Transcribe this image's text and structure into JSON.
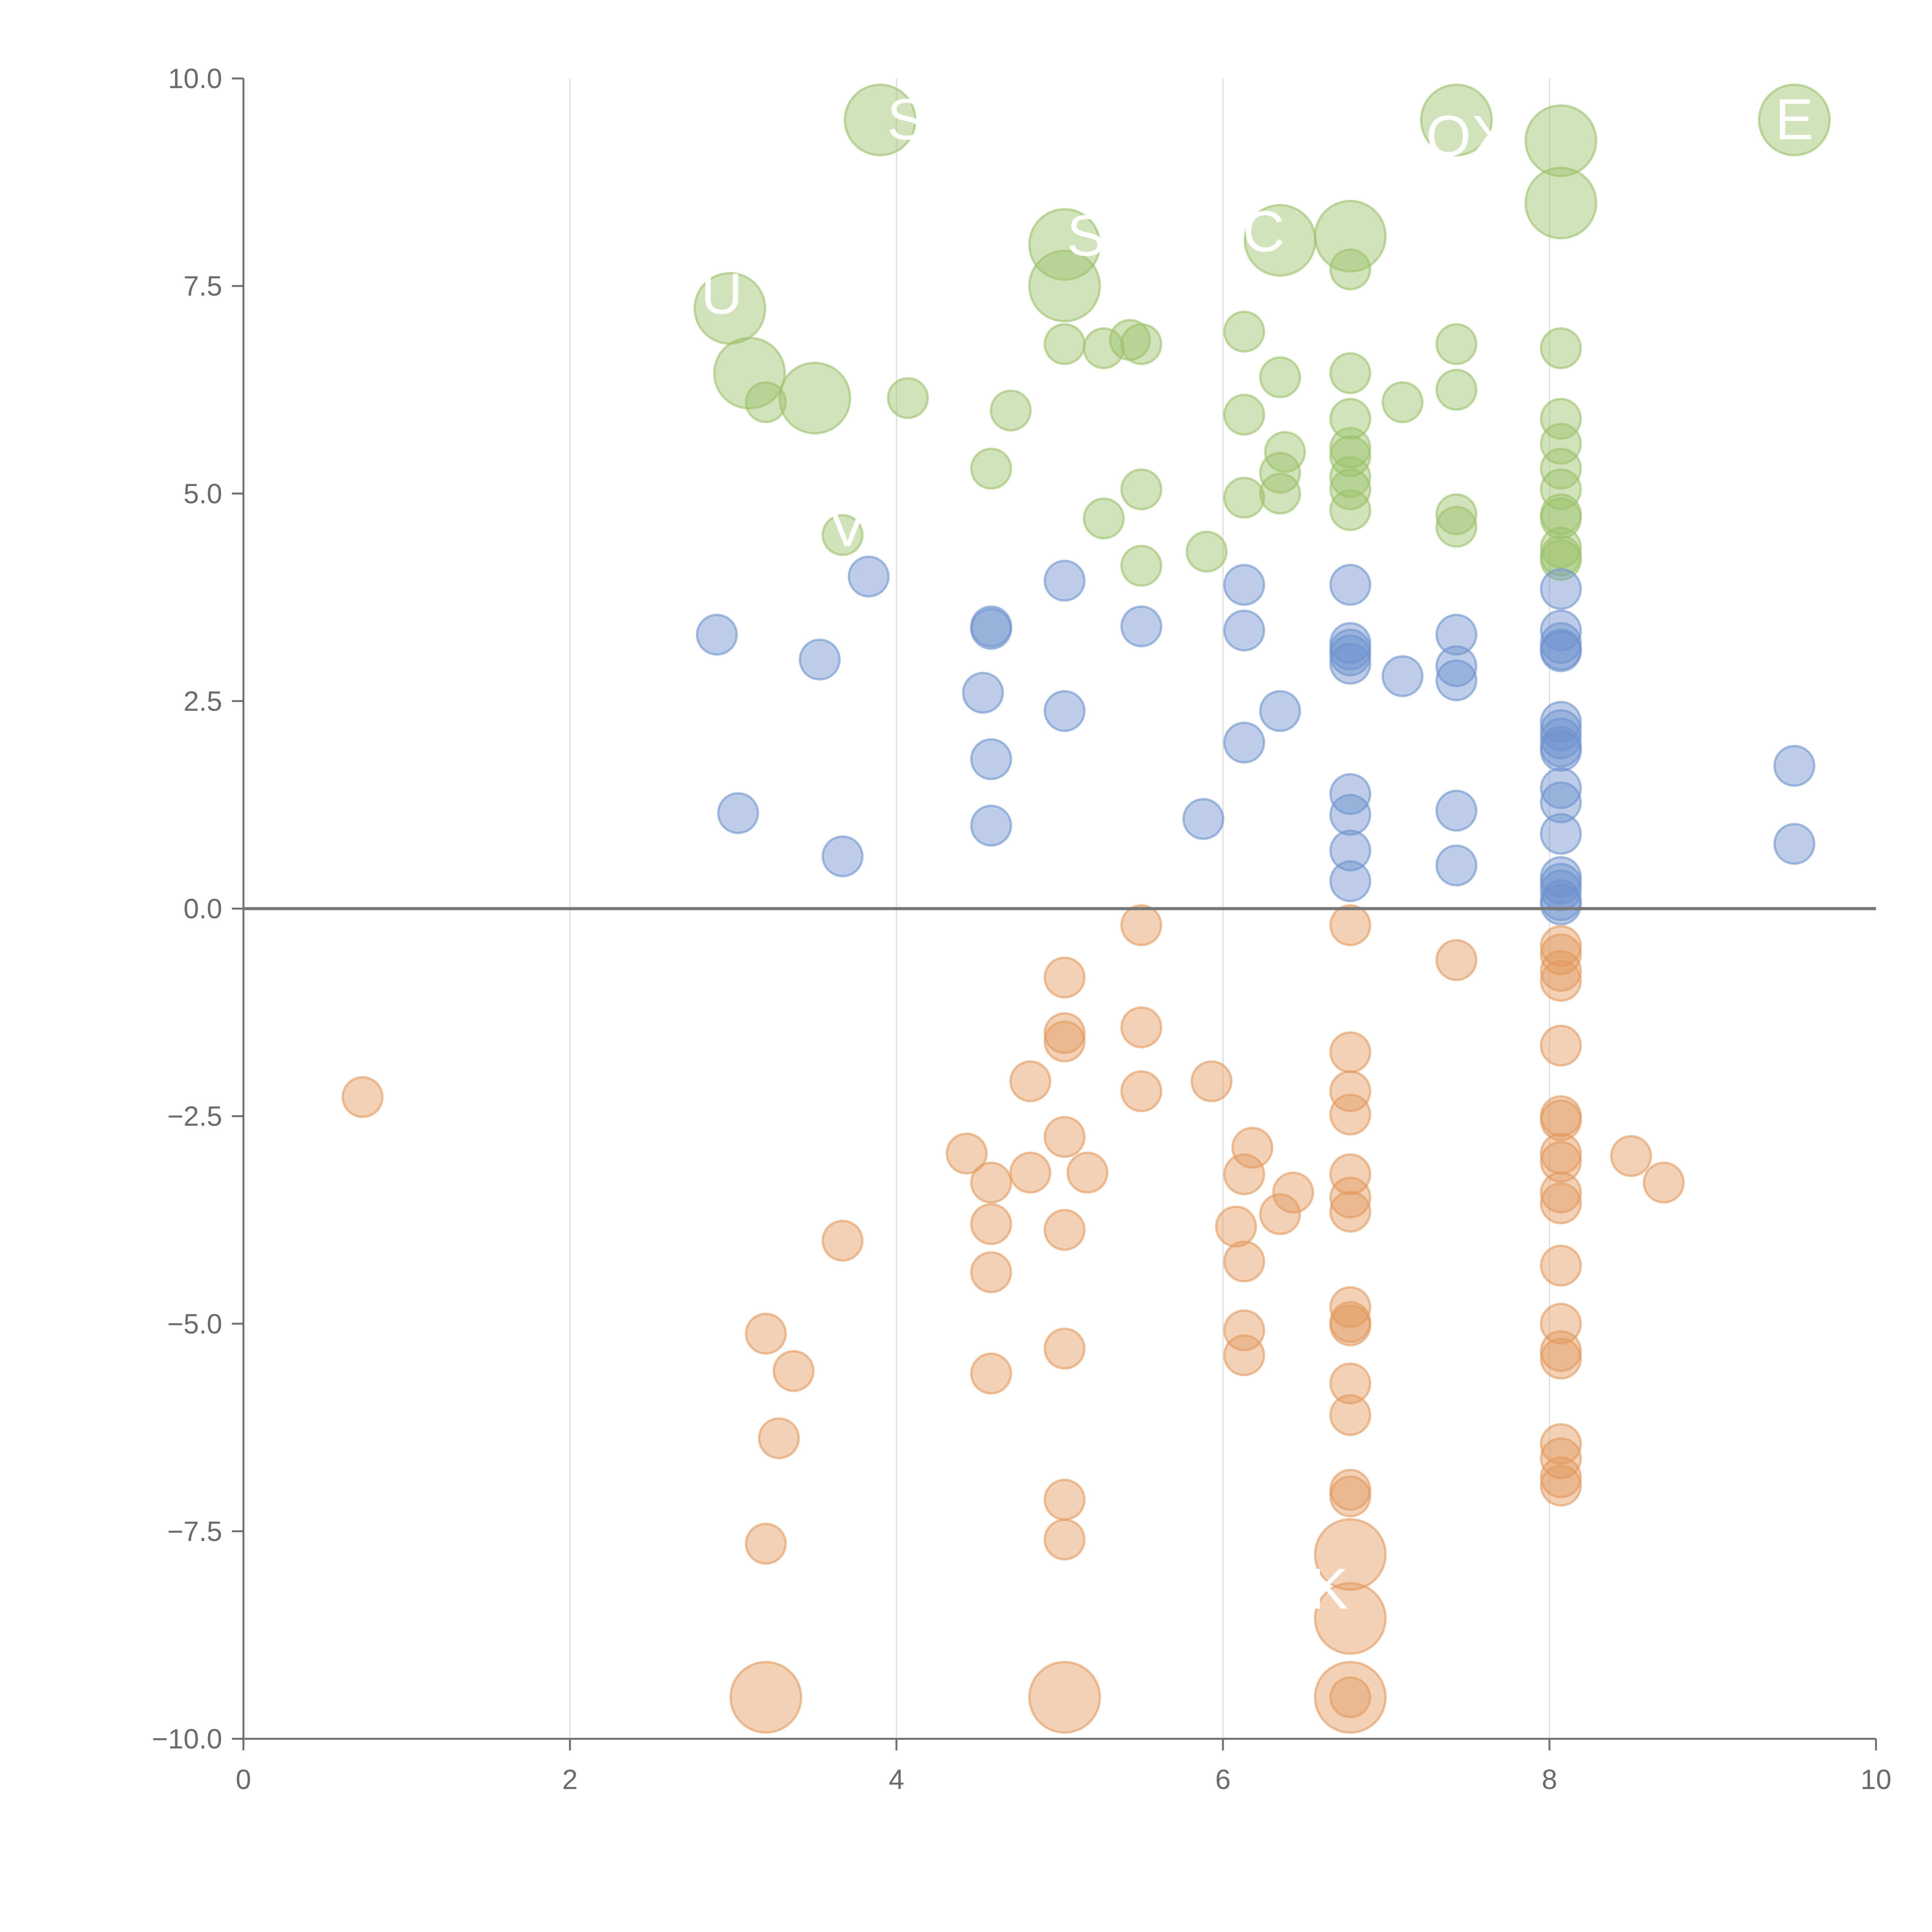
{
  "chart_data": {
    "type": "scatter",
    "title": "",
    "xlabel": "",
    "ylabel": "",
    "xlim": [
      0,
      10
    ],
    "ylim": [
      -10,
      10
    ],
    "xticks": [
      "0",
      "2",
      "4",
      "6",
      "8",
      "10"
    ],
    "yticks": [
      "10.0",
      "7.5",
      "5.0",
      "2.5",
      "0.0",
      "−2.5",
      "−5.0",
      "−7.5",
      "−10.0"
    ],
    "vertical_grid": true,
    "zero_line": true,
    "colors": {
      "green": "#9bc26b",
      "blue": "#6e93cf",
      "orange": "#e39a5f"
    },
    "annotations": [
      {
        "text": "S",
        "x": 4.06,
        "y": 9.5
      },
      {
        "text": "OX",
        "x": 7.5,
        "y": 9.3
      },
      {
        "text": "E",
        "x": 9.5,
        "y": 9.5
      },
      {
        "text": "SO",
        "x": 5.3,
        "y": 8.1
      },
      {
        "text": "C",
        "x": 6.25,
        "y": 8.15
      },
      {
        "text": "U",
        "x": 2.93,
        "y": 7.4
      },
      {
        "text": "V",
        "x": 3.7,
        "y": 4.6
      },
      {
        "text": "K",
        "x": 6.65,
        "y": -8.2
      }
    ],
    "series": [
      {
        "color_key": "green",
        "points": [
          [
            3.9,
            9.5,
            1.6
          ],
          [
            7.43,
            9.5,
            1.6
          ],
          [
            9.5,
            9.5,
            1.6
          ],
          [
            8.07,
            9.25,
            1.6
          ],
          [
            8.07,
            8.5,
            1.6
          ],
          [
            5.03,
            8.0,
            1.6
          ],
          [
            6.35,
            8.05,
            1.6
          ],
          [
            6.78,
            8.1,
            1.6
          ],
          [
            5.03,
            7.5,
            1.6
          ],
          [
            2.98,
            7.23,
            1.6
          ],
          [
            3.1,
            6.45,
            1.6
          ],
          [
            3.5,
            6.15,
            1.6
          ],
          [
            6.78,
            7.7,
            0.9
          ],
          [
            3.2,
            6.1,
            0.9
          ],
          [
            4.07,
            6.15,
            0.9
          ],
          [
            4.7,
            6.0,
            0.9
          ],
          [
            5.03,
            6.8,
            0.9
          ],
          [
            5.27,
            6.75,
            0.9
          ],
          [
            5.43,
            6.85,
            0.9
          ],
          [
            5.5,
            6.8,
            0.9
          ],
          [
            6.13,
            6.95,
            0.9
          ],
          [
            6.13,
            5.95,
            0.9
          ],
          [
            6.35,
            6.4,
            0.9
          ],
          [
            6.78,
            6.45,
            0.9
          ],
          [
            6.78,
            5.9,
            0.9
          ],
          [
            7.1,
            6.1,
            0.9
          ],
          [
            7.43,
            6.8,
            0.9
          ],
          [
            7.43,
            6.25,
            0.9
          ],
          [
            8.07,
            6.75,
            0.9
          ],
          [
            8.07,
            5.9,
            0.9
          ],
          [
            8.07,
            5.6,
            0.9
          ],
          [
            4.58,
            5.3,
            0.9
          ],
          [
            6.38,
            5.5,
            0.9
          ],
          [
            6.35,
            5.25,
            0.9
          ],
          [
            6.78,
            5.55,
            0.9
          ],
          [
            6.78,
            5.45,
            0.9
          ],
          [
            6.78,
            5.2,
            0.9
          ],
          [
            6.78,
            5.05,
            0.9
          ],
          [
            8.07,
            5.3,
            0.9
          ],
          [
            8.07,
            5.05,
            0.9
          ],
          [
            5.5,
            5.05,
            0.9
          ],
          [
            6.13,
            4.95,
            0.9
          ],
          [
            6.35,
            5.0,
            0.9
          ],
          [
            6.78,
            4.8,
            0.9
          ],
          [
            8.07,
            4.75,
            0.9
          ],
          [
            8.07,
            4.7,
            0.9
          ],
          [
            3.67,
            4.5,
            0.9
          ],
          [
            5.27,
            4.7,
            0.9
          ],
          [
            7.43,
            4.75,
            0.9
          ],
          [
            7.43,
            4.6,
            0.9
          ],
          [
            5.5,
            4.13,
            0.9
          ],
          [
            5.9,
            4.3,
            0.9
          ],
          [
            8.07,
            4.35,
            0.9
          ],
          [
            8.07,
            4.25,
            0.9
          ],
          [
            8.07,
            4.2,
            0.9
          ]
        ]
      },
      {
        "color_key": "blue",
        "points": [
          [
            3.83,
            4.0,
            0.9
          ],
          [
            5.03,
            3.95,
            0.9
          ],
          [
            6.13,
            3.9,
            0.9
          ],
          [
            6.78,
            3.9,
            0.9
          ],
          [
            8.07,
            3.85,
            0.9
          ],
          [
            2.9,
            3.3,
            0.9
          ],
          [
            4.58,
            3.4,
            0.9
          ],
          [
            4.58,
            3.37,
            0.9
          ],
          [
            5.5,
            3.4,
            0.9
          ],
          [
            6.13,
            3.35,
            0.9
          ],
          [
            7.43,
            3.3,
            0.9
          ],
          [
            8.07,
            3.35,
            0.9
          ],
          [
            3.53,
            3.0,
            0.9
          ],
          [
            6.78,
            3.2,
            0.9
          ],
          [
            6.78,
            3.12,
            0.9
          ],
          [
            6.78,
            3.05,
            0.9
          ],
          [
            6.78,
            2.95,
            0.9
          ],
          [
            8.07,
            3.2,
            0.9
          ],
          [
            8.07,
            3.12,
            0.9
          ],
          [
            8.07,
            3.1,
            0.9
          ],
          [
            7.43,
            2.92,
            0.9
          ],
          [
            7.43,
            2.75,
            0.9
          ],
          [
            7.1,
            2.8,
            0.9
          ],
          [
            4.53,
            2.6,
            0.9
          ],
          [
            5.03,
            2.38,
            0.9
          ],
          [
            6.35,
            2.38,
            0.9
          ],
          [
            8.07,
            2.25,
            0.9
          ],
          [
            8.07,
            2.15,
            0.9
          ],
          [
            8.07,
            2.05,
            0.9
          ],
          [
            8.07,
            1.95,
            0.9
          ],
          [
            8.07,
            1.9,
            0.9
          ],
          [
            6.13,
            2.0,
            0.9
          ],
          [
            4.58,
            1.8,
            0.9
          ],
          [
            9.5,
            1.72,
            0.9
          ],
          [
            8.07,
            1.45,
            0.9
          ],
          [
            6.78,
            1.38,
            0.9
          ],
          [
            8.07,
            1.28,
            0.9
          ],
          [
            3.03,
            1.15,
            0.9
          ],
          [
            6.78,
            1.13,
            0.9
          ],
          [
            7.43,
            1.18,
            0.9
          ],
          [
            5.88,
            1.08,
            0.9
          ],
          [
            4.58,
            1.0,
            0.9
          ],
          [
            8.07,
            0.9,
            0.9
          ],
          [
            9.5,
            0.78,
            0.9
          ],
          [
            6.78,
            0.7,
            0.9
          ],
          [
            3.67,
            0.63,
            0.9
          ],
          [
            7.43,
            0.52,
            0.9
          ],
          [
            8.07,
            0.38,
            0.9
          ],
          [
            6.78,
            0.33,
            0.9
          ],
          [
            8.07,
            0.3,
            0.9
          ],
          [
            8.07,
            0.22,
            0.9
          ],
          [
            8.07,
            0.1,
            0.9
          ],
          [
            8.07,
            0.05,
            0.9
          ]
        ]
      },
      {
        "color_key": "orange",
        "points": [
          [
            5.5,
            -0.2,
            0.9
          ],
          [
            6.78,
            -0.2,
            0.9
          ],
          [
            8.07,
            -0.45,
            0.9
          ],
          [
            8.07,
            -0.55,
            0.9
          ],
          [
            7.43,
            -0.62,
            0.9
          ],
          [
            8.07,
            -0.75,
            0.9
          ],
          [
            5.03,
            -0.83,
            0.9
          ],
          [
            8.07,
            -0.87,
            0.9
          ],
          [
            5.5,
            -1.43,
            0.9
          ],
          [
            5.03,
            -1.5,
            0.9
          ],
          [
            5.03,
            -1.6,
            0.9
          ],
          [
            8.07,
            -1.65,
            0.9
          ],
          [
            6.78,
            -1.73,
            0.9
          ],
          [
            4.82,
            -2.08,
            0.9
          ],
          [
            5.93,
            -2.08,
            0.9
          ],
          [
            5.5,
            -2.2,
            0.9
          ],
          [
            6.78,
            -2.2,
            0.9
          ],
          [
            0.73,
            -2.27,
            0.9
          ],
          [
            6.78,
            -2.48,
            0.9
          ],
          [
            8.07,
            -2.5,
            0.9
          ],
          [
            8.07,
            -2.55,
            0.9
          ],
          [
            5.03,
            -2.75,
            0.9
          ],
          [
            6.18,
            -2.88,
            0.9
          ],
          [
            4.43,
            -2.95,
            0.9
          ],
          [
            8.07,
            -2.95,
            0.9
          ],
          [
            8.5,
            -2.98,
            0.9
          ],
          [
            8.07,
            -3.05,
            0.9
          ],
          [
            4.82,
            -3.18,
            0.9
          ],
          [
            5.17,
            -3.18,
            0.9
          ],
          [
            6.13,
            -3.2,
            0.9
          ],
          [
            6.78,
            -3.2,
            0.9
          ],
          [
            4.58,
            -3.3,
            0.9
          ],
          [
            8.7,
            -3.3,
            0.9
          ],
          [
            6.43,
            -3.42,
            0.9
          ],
          [
            8.07,
            -3.42,
            0.9
          ],
          [
            6.78,
            -3.48,
            0.9
          ],
          [
            8.07,
            -3.55,
            0.9
          ],
          [
            6.35,
            -3.68,
            0.9
          ],
          [
            6.78,
            -3.65,
            0.9
          ],
          [
            4.58,
            -3.8,
            0.9
          ],
          [
            6.08,
            -3.83,
            0.9
          ],
          [
            5.03,
            -3.87,
            0.9
          ],
          [
            3.67,
            -4.0,
            0.9
          ],
          [
            6.13,
            -4.25,
            0.9
          ],
          [
            8.07,
            -4.3,
            0.9
          ],
          [
            4.58,
            -4.38,
            0.9
          ],
          [
            6.78,
            -4.8,
            0.9
          ],
          [
            6.78,
            -4.98,
            0.9
          ],
          [
            6.78,
            -5.02,
            0.9
          ],
          [
            8.07,
            -5.0,
            0.9
          ],
          [
            6.13,
            -5.08,
            0.9
          ],
          [
            3.2,
            -5.12,
            0.9
          ],
          [
            5.03,
            -5.3,
            0.9
          ],
          [
            8.07,
            -5.33,
            0.9
          ],
          [
            8.07,
            -5.42,
            0.9
          ],
          [
            6.13,
            -5.38,
            0.9
          ],
          [
            3.37,
            -5.57,
            0.9
          ],
          [
            4.58,
            -5.6,
            0.9
          ],
          [
            6.78,
            -5.72,
            0.9
          ],
          [
            6.78,
            -6.1,
            0.9
          ],
          [
            3.28,
            -6.38,
            0.9
          ],
          [
            8.07,
            -6.45,
            0.9
          ],
          [
            8.07,
            -6.62,
            0.9
          ],
          [
            8.07,
            -6.85,
            0.9
          ],
          [
            8.07,
            -6.95,
            0.9
          ],
          [
            6.78,
            -7.0,
            0.9
          ],
          [
            6.78,
            -7.08,
            0.9
          ],
          [
            5.03,
            -7.12,
            0.9
          ],
          [
            5.03,
            -7.6,
            0.9
          ],
          [
            3.2,
            -7.65,
            0.9
          ],
          [
            6.78,
            -7.78,
            1.6
          ],
          [
            6.78,
            -8.55,
            1.6
          ],
          [
            3.2,
            -9.5,
            1.6
          ],
          [
            5.03,
            -9.5,
            1.6
          ],
          [
            6.78,
            -9.5,
            1.6
          ],
          [
            6.78,
            -9.5,
            0.9
          ]
        ]
      }
    ]
  }
}
